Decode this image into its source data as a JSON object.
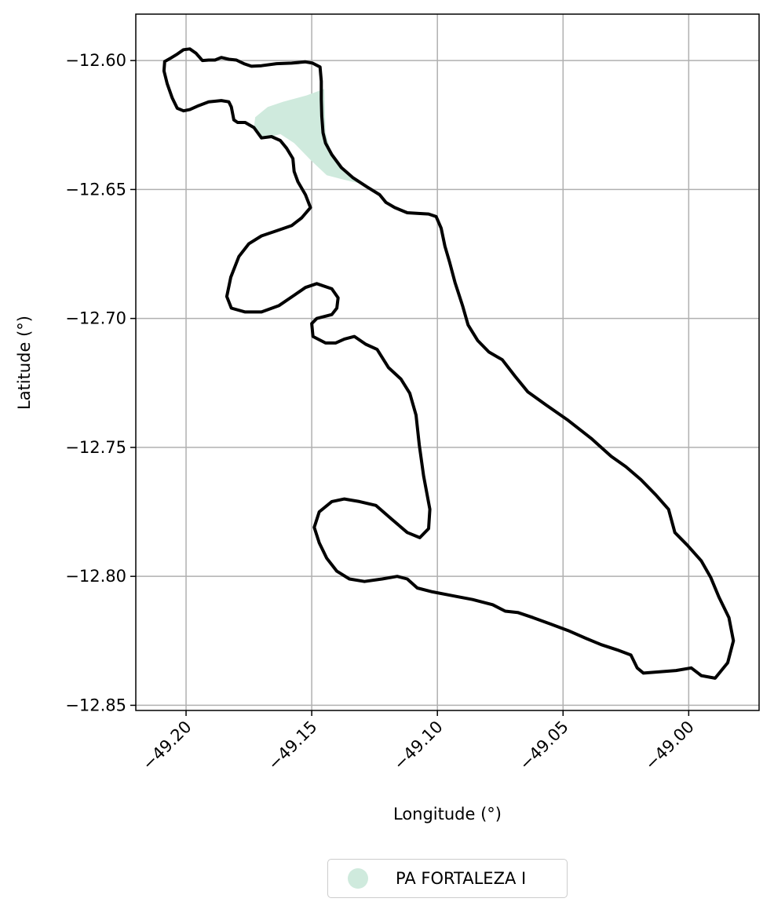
{
  "map": {
    "xlabel": "Longitude (°)",
    "ylabel": "Latitude (°)",
    "xlim": [
      -49.22,
      -48.972
    ],
    "ylim": [
      -12.852,
      -12.582
    ],
    "xticks": [
      -49.2,
      -49.15,
      -49.1,
      -49.05,
      -49.0
    ],
    "xtick_labels": [
      "−49.20",
      "−49.15",
      "−49.10",
      "−49.05",
      "−49.00"
    ],
    "yticks": [
      -12.6,
      -12.65,
      -12.7,
      -12.75,
      -12.8,
      -12.85
    ],
    "ytick_labels": [
      "−12.60",
      "−12.65",
      "−12.70",
      "−12.75",
      "−12.80",
      "−12.85"
    ],
    "grid": true,
    "legend_position": "bottom-center, below axes",
    "boundary_color": "#000000",
    "boundary": [
      [
        -49.2085,
        -12.6004
      ],
      [
        -49.206,
        -12.599
      ],
      [
        -49.2035,
        -12.5975
      ],
      [
        -49.201,
        -12.5958
      ],
      [
        -49.1985,
        -12.5955
      ],
      [
        -49.196,
        -12.5972
      ],
      [
        -49.1935,
        -12.6
      ],
      [
        -49.191,
        -12.5998
      ],
      [
        -49.1885,
        -12.5998
      ],
      [
        -49.186,
        -12.5988
      ],
      [
        -49.183,
        -12.5995
      ],
      [
        -49.18,
        -12.5998
      ],
      [
        -49.177,
        -12.6012
      ],
      [
        -49.174,
        -12.6022
      ],
      [
        -49.17,
        -12.602
      ],
      [
        -49.164,
        -12.6012
      ],
      [
        -49.158,
        -12.601
      ],
      [
        -49.1525,
        -12.6005
      ],
      [
        -49.1497,
        -12.601
      ],
      [
        -49.1467,
        -12.6025
      ],
      [
        -49.1462,
        -12.608
      ],
      [
        -49.1462,
        -12.615
      ],
      [
        -49.146,
        -12.6215
      ],
      [
        -49.1455,
        -12.628
      ],
      [
        -49.1445,
        -12.632
      ],
      [
        -49.142,
        -12.6365
      ],
      [
        -49.1382,
        -12.6415
      ],
      [
        -49.1335,
        -12.6455
      ],
      [
        -49.128,
        -12.649
      ],
      [
        -49.123,
        -12.652
      ],
      [
        -49.1205,
        -12.655
      ],
      [
        -49.117,
        -12.657
      ],
      [
        -49.112,
        -12.659
      ],
      [
        -49.1075,
        -12.6593
      ],
      [
        -49.1035,
        -12.6595
      ],
      [
        -49.1005,
        -12.6605
      ],
      [
        -49.0985,
        -12.665
      ],
      [
        -49.097,
        -12.672
      ],
      [
        -49.0952,
        -12.678
      ],
      [
        -49.093,
        -12.686
      ],
      [
        -49.09,
        -12.695
      ],
      [
        -49.0878,
        -12.7025
      ],
      [
        -49.084,
        -12.7085
      ],
      [
        -49.0795,
        -12.713
      ],
      [
        -49.0742,
        -12.716
      ],
      [
        -49.069,
        -12.7225
      ],
      [
        -49.064,
        -12.7285
      ],
      [
        -49.0568,
        -12.7335
      ],
      [
        -49.048,
        -12.7395
      ],
      [
        -49.0388,
        -12.7465
      ],
      [
        -49.0308,
        -12.7535
      ],
      [
        -49.025,
        -12.7575
      ],
      [
        -49.019,
        -12.7625
      ],
      [
        -49.013,
        -12.7685
      ],
      [
        -49.008,
        -12.774
      ],
      [
        -49.0055,
        -12.783
      ],
      [
        -49.0005,
        -12.788
      ],
      [
        -48.995,
        -12.794
      ],
      [
        -48.9912,
        -12.8005
      ],
      [
        -48.988,
        -12.808
      ],
      [
        -48.984,
        -12.816
      ],
      [
        -48.9822,
        -12.825
      ],
      [
        -48.9845,
        -12.8335
      ],
      [
        -48.9895,
        -12.8395
      ],
      [
        -48.995,
        -12.8385
      ],
      [
        -48.999,
        -12.8355
      ],
      [
        -49.005,
        -12.8365
      ],
      [
        -49.0115,
        -12.837
      ],
      [
        -49.018,
        -12.8375
      ],
      [
        -49.0205,
        -12.8355
      ],
      [
        -49.023,
        -12.8305
      ],
      [
        -49.0285,
        -12.8285
      ],
      [
        -49.0348,
        -12.8265
      ],
      [
        -49.041,
        -12.824
      ],
      [
        -49.048,
        -12.821
      ],
      [
        -49.055,
        -12.8185
      ],
      [
        -49.062,
        -12.816
      ],
      [
        -49.068,
        -12.814
      ],
      [
        -49.073,
        -12.8135
      ],
      [
        -49.078,
        -12.811
      ],
      [
        -49.086,
        -12.809
      ],
      [
        -49.094,
        -12.8075
      ],
      [
        -49.102,
        -12.806
      ],
      [
        -49.108,
        -12.8045
      ],
      [
        -49.112,
        -12.801
      ],
      [
        -49.116,
        -12.8
      ],
      [
        -49.122,
        -12.801
      ],
      [
        -49.129,
        -12.802
      ],
      [
        -49.135,
        -12.801
      ],
      [
        -49.14,
        -12.798
      ],
      [
        -49.144,
        -12.793
      ],
      [
        -49.147,
        -12.787
      ],
      [
        -49.149,
        -12.781
      ],
      [
        -49.147,
        -12.775
      ],
      [
        -49.142,
        -12.771
      ],
      [
        -49.137,
        -12.77
      ],
      [
        -49.131,
        -12.771
      ],
      [
        -49.1245,
        -12.7725
      ],
      [
        -49.118,
        -12.778
      ],
      [
        -49.112,
        -12.783
      ],
      [
        -49.107,
        -12.785
      ],
      [
        -49.1035,
        -12.7815
      ],
      [
        -49.103,
        -12.774
      ],
      [
        -49.1055,
        -12.761
      ],
      [
        -49.1072,
        -12.749
      ],
      [
        -49.1085,
        -12.7375
      ],
      [
        -49.111,
        -12.729
      ],
      [
        -49.1145,
        -12.7235
      ],
      [
        -49.1195,
        -12.719
      ],
      [
        -49.124,
        -12.712
      ],
      [
        -49.1285,
        -12.71
      ],
      [
        -49.133,
        -12.707
      ],
      [
        -49.137,
        -12.708
      ],
      [
        -49.1405,
        -12.7095
      ],
      [
        -49.1445,
        -12.7095
      ],
      [
        -49.1495,
        -12.707
      ],
      [
        -49.15,
        -12.702
      ],
      [
        -49.148,
        -12.7
      ],
      [
        -49.142,
        -12.6985
      ],
      [
        -49.14,
        -12.696
      ],
      [
        -49.1395,
        -12.692
      ],
      [
        -49.142,
        -12.6885
      ],
      [
        -49.148,
        -12.6865
      ],
      [
        -49.1525,
        -12.688
      ],
      [
        -49.157,
        -12.691
      ],
      [
        -49.163,
        -12.695
      ],
      [
        -49.17,
        -12.6975
      ],
      [
        -49.1765,
        -12.6975
      ],
      [
        -49.182,
        -12.696
      ],
      [
        -49.1838,
        -12.6915
      ],
      [
        -49.1822,
        -12.684
      ],
      [
        -49.179,
        -12.676
      ],
      [
        -49.175,
        -12.671
      ],
      [
        -49.17,
        -12.668
      ],
      [
        -49.164,
        -12.666
      ],
      [
        -49.158,
        -12.664
      ],
      [
        -49.154,
        -12.661
      ],
      [
        -49.1505,
        -12.657
      ],
      [
        -49.1525,
        -12.652
      ],
      [
        -49.1555,
        -12.647
      ],
      [
        -49.157,
        -12.643
      ],
      [
        -49.1575,
        -12.638
      ],
      [
        -49.16,
        -12.634
      ],
      [
        -49.1625,
        -12.631
      ],
      [
        -49.166,
        -12.6295
      ],
      [
        -49.17,
        -12.63
      ],
      [
        -49.173,
        -12.626
      ],
      [
        -49.1765,
        -12.624
      ],
      [
        -49.1795,
        -12.624
      ],
      [
        -49.181,
        -12.623
      ],
      [
        -49.182,
        -12.618
      ],
      [
        -49.183,
        -12.616
      ],
      [
        -49.186,
        -12.6155
      ],
      [
        -49.191,
        -12.616
      ],
      [
        -49.195,
        -12.6175
      ],
      [
        -49.1985,
        -12.619
      ],
      [
        -49.201,
        -12.6195
      ],
      [
        -49.2035,
        -12.6185
      ],
      [
        -49.2055,
        -12.6145
      ],
      [
        -49.2075,
        -12.609
      ],
      [
        -49.2088,
        -12.604
      ],
      [
        -49.2085,
        -12.6004
      ]
    ],
    "fill_polygon": [
      [
        -49.1675,
        -12.618
      ],
      [
        -49.1615,
        -12.616
      ],
      [
        -49.152,
        -12.6135
      ],
      [
        -49.145,
        -12.611
      ],
      [
        -49.1445,
        -12.628
      ],
      [
        -49.142,
        -12.6365
      ],
      [
        -49.1382,
        -12.6415
      ],
      [
        -49.1335,
        -12.6455
      ],
      [
        -49.1295,
        -12.648
      ],
      [
        -49.138,
        -12.646
      ],
      [
        -49.144,
        -12.6445
      ],
      [
        -49.15,
        -12.639
      ],
      [
        -49.157,
        -12.632
      ],
      [
        -49.1625,
        -12.6285
      ],
      [
        -49.166,
        -12.6295
      ],
      [
        -49.17,
        -12.63
      ],
      [
        -49.173,
        -12.626
      ],
      [
        -49.1725,
        -12.622
      ],
      [
        -49.17,
        -12.62
      ]
    ]
  },
  "legend": {
    "label": "PA FORTALEZA I",
    "color": "#cfeadd"
  }
}
